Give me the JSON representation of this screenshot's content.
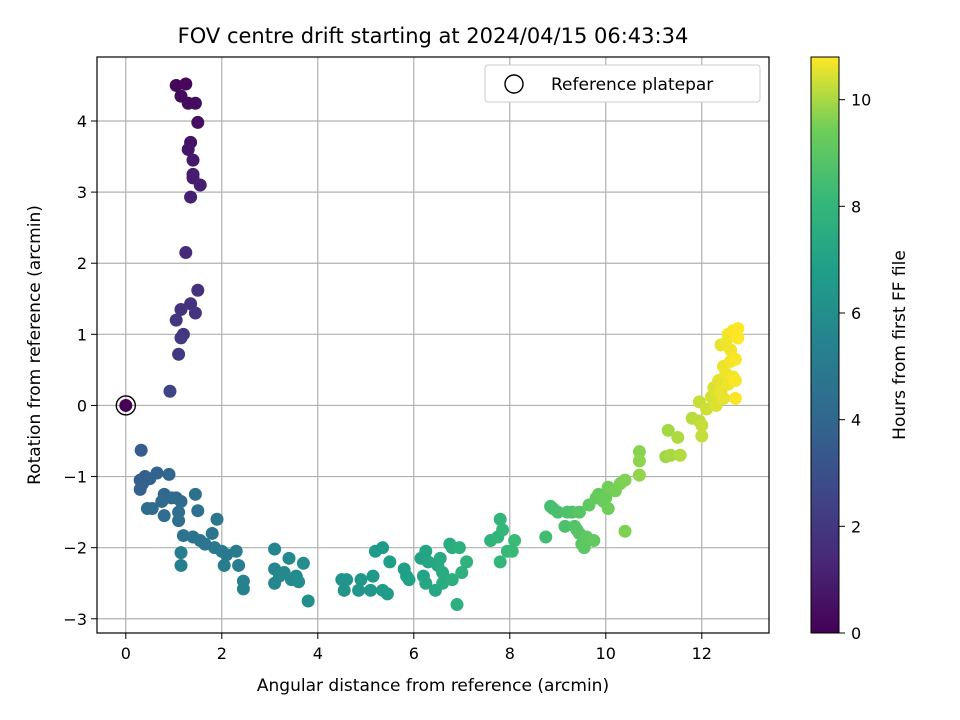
{
  "chart_data": {
    "type": "scatter",
    "title": "FOV centre drift starting at 2024/04/15 06:43:34",
    "xlabel": "Angular distance from reference (arcmin)",
    "ylabel": "Rotation from reference (arcmin)",
    "xlim": [
      -0.6,
      13.4
    ],
    "ylim": [
      -3.2,
      4.9
    ],
    "xticks": [
      0,
      2,
      4,
      6,
      8,
      10,
      12
    ],
    "yticks": [
      -3,
      -2,
      -1,
      0,
      1,
      2,
      3,
      4
    ],
    "grid": true,
    "colormap": "viridis",
    "colorbar": {
      "label": "Hours from first FF file",
      "range": [
        0,
        10.8
      ],
      "ticks": [
        0,
        2,
        4,
        6,
        8,
        10
      ]
    },
    "legend": {
      "position": "upper right",
      "entries": [
        "Reference platepar"
      ]
    },
    "reference_point": {
      "x": 0,
      "y": 0
    },
    "points": [
      [
        1.05,
        4.5,
        0.2
      ],
      [
        1.25,
        4.52,
        0.25
      ],
      [
        1.15,
        4.35,
        0.3
      ],
      [
        1.3,
        4.25,
        0.35
      ],
      [
        1.45,
        4.25,
        0.4
      ],
      [
        1.5,
        3.98,
        0.5
      ],
      [
        1.35,
        3.7,
        0.6
      ],
      [
        1.3,
        3.6,
        0.7
      ],
      [
        1.4,
        3.45,
        0.8
      ],
      [
        1.4,
        3.25,
        0.9
      ],
      [
        1.4,
        3.2,
        1.0
      ],
      [
        1.55,
        3.1,
        1.05
      ],
      [
        1.35,
        2.93,
        1.1
      ],
      [
        1.25,
        2.15,
        1.5
      ],
      [
        1.5,
        1.62,
        1.7
      ],
      [
        1.35,
        1.43,
        1.8
      ],
      [
        1.15,
        1.35,
        1.85
      ],
      [
        1.45,
        1.3,
        1.9
      ],
      [
        1.05,
        1.2,
        1.95
      ],
      [
        1.2,
        1.0,
        2.0
      ],
      [
        1.15,
        0.95,
        2.05
      ],
      [
        1.1,
        0.72,
        2.1
      ],
      [
        0.92,
        0.2,
        2.5
      ],
      [
        0.32,
        -0.63,
        3.5
      ],
      [
        0.3,
        -1.05,
        3.6
      ],
      [
        0.4,
        -1.0,
        3.65
      ],
      [
        0.35,
        -1.1,
        3.7
      ],
      [
        0.3,
        -1.18,
        3.75
      ],
      [
        0.5,
        -1.03,
        3.8
      ],
      [
        0.65,
        -0.95,
        3.9
      ],
      [
        0.9,
        -0.97,
        4.0
      ],
      [
        0.8,
        -1.25,
        4.05
      ],
      [
        0.95,
        -1.3,
        4.1
      ],
      [
        1.05,
        -1.3,
        4.15
      ],
      [
        1.15,
        -1.35,
        4.2
      ],
      [
        0.75,
        -1.35,
        4.2
      ],
      [
        0.55,
        -1.45,
        4.25
      ],
      [
        0.45,
        -1.45,
        4.3
      ],
      [
        0.8,
        -1.55,
        4.35
      ],
      [
        1.1,
        -1.5,
        4.4
      ],
      [
        1.1,
        -1.62,
        4.45
      ],
      [
        1.45,
        -1.25,
        4.5
      ],
      [
        1.5,
        -1.48,
        4.5
      ],
      [
        1.2,
        -1.83,
        4.6
      ],
      [
        1.4,
        -1.85,
        4.65
      ],
      [
        1.55,
        -1.9,
        4.7
      ],
      [
        1.65,
        -1.95,
        4.75
      ],
      [
        1.8,
        -1.8,
        4.8
      ],
      [
        1.9,
        -1.6,
        4.85
      ],
      [
        1.85,
        -2.0,
        4.9
      ],
      [
        2.0,
        -2.05,
        4.95
      ],
      [
        2.1,
        -2.1,
        5.0
      ],
      [
        2.05,
        -2.25,
        5.05
      ],
      [
        2.3,
        -2.05,
        5.1
      ],
      [
        2.35,
        -2.25,
        5.15
      ],
      [
        1.15,
        -2.07,
        5.2
      ],
      [
        1.15,
        -2.25,
        5.25
      ],
      [
        2.45,
        -2.47,
        5.3
      ],
      [
        2.45,
        -2.58,
        5.35
      ],
      [
        3.1,
        -2.02,
        5.5
      ],
      [
        3.1,
        -2.3,
        5.55
      ],
      [
        3.1,
        -2.5,
        5.6
      ],
      [
        3.2,
        -2.4,
        5.65
      ],
      [
        3.3,
        -2.35,
        5.7
      ],
      [
        3.4,
        -2.15,
        5.75
      ],
      [
        3.45,
        -2.45,
        5.8
      ],
      [
        3.55,
        -2.4,
        5.85
      ],
      [
        3.6,
        -2.48,
        5.9
      ],
      [
        3.7,
        -2.22,
        5.95
      ],
      [
        3.8,
        -2.75,
        6.0
      ],
      [
        4.5,
        -2.45,
        6.2
      ],
      [
        4.55,
        -2.6,
        6.25
      ],
      [
        4.6,
        -2.45,
        6.3
      ],
      [
        4.85,
        -2.6,
        6.35
      ],
      [
        4.9,
        -2.45,
        6.4
      ],
      [
        5.1,
        -2.6,
        6.45
      ],
      [
        5.15,
        -2.4,
        6.5
      ],
      [
        5.2,
        -2.05,
        6.55
      ],
      [
        5.35,
        -2.0,
        6.6
      ],
      [
        5.35,
        -2.6,
        6.65
      ],
      [
        5.45,
        -2.65,
        6.7
      ],
      [
        5.5,
        -2.2,
        6.75
      ],
      [
        5.8,
        -2.3,
        6.8
      ],
      [
        5.85,
        -2.4,
        6.85
      ],
      [
        5.9,
        -2.45,
        6.9
      ],
      [
        6.15,
        -2.15,
        7.0
      ],
      [
        6.2,
        -2.4,
        7.05
      ],
      [
        6.25,
        -2.05,
        7.1
      ],
      [
        6.3,
        -2.2,
        7.15
      ],
      [
        6.25,
        -2.5,
        7.2
      ],
      [
        6.45,
        -2.6,
        7.25
      ],
      [
        6.5,
        -2.25,
        7.3
      ],
      [
        6.55,
        -2.15,
        7.35
      ],
      [
        6.6,
        -2.35,
        7.4
      ],
      [
        6.6,
        -2.5,
        7.45
      ],
      [
        6.75,
        -1.95,
        7.5
      ],
      [
        6.8,
        -2.0,
        7.55
      ],
      [
        6.8,
        -2.45,
        7.6
      ],
      [
        6.9,
        -2.8,
        7.65
      ],
      [
        6.95,
        -2.0,
        7.7
      ],
      [
        7.0,
        -2.35,
        7.75
      ],
      [
        7.1,
        -2.2,
        7.8
      ],
      [
        7.6,
        -1.9,
        7.9
      ],
      [
        7.75,
        -1.85,
        7.95
      ],
      [
        7.8,
        -1.6,
        8.0
      ],
      [
        7.8,
        -2.2,
        8.05
      ],
      [
        7.85,
        -1.75,
        8.1
      ],
      [
        7.95,
        -2.05,
        8.15
      ],
      [
        8.05,
        -2.05,
        8.2
      ],
      [
        8.1,
        -1.9,
        8.25
      ],
      [
        8.75,
        -1.85,
        8.4
      ],
      [
        8.85,
        -1.42,
        8.5
      ],
      [
        8.9,
        -1.45,
        8.55
      ],
      [
        9.0,
        -1.5,
        8.6
      ],
      [
        9.15,
        -1.7,
        8.65
      ],
      [
        9.2,
        -1.5,
        8.7
      ],
      [
        9.3,
        -1.5,
        8.75
      ],
      [
        9.35,
        -1.7,
        8.8
      ],
      [
        9.4,
        -1.75,
        8.85
      ],
      [
        9.45,
        -1.8,
        8.9
      ],
      [
        9.45,
        -1.5,
        8.95
      ],
      [
        9.5,
        -1.95,
        9.0
      ],
      [
        9.55,
        -2.0,
        9.05
      ],
      [
        9.6,
        -1.85,
        9.1
      ],
      [
        9.65,
        -1.4,
        9.1
      ],
      [
        9.75,
        -1.9,
        9.15
      ],
      [
        9.8,
        -1.3,
        9.2
      ],
      [
        9.85,
        -1.25,
        9.25
      ],
      [
        9.95,
        -1.35,
        9.3
      ],
      [
        10.0,
        -1.3,
        9.35
      ],
      [
        10.05,
        -1.45,
        9.4
      ],
      [
        10.05,
        -1.15,
        9.45
      ],
      [
        10.2,
        -1.2,
        9.5
      ],
      [
        10.3,
        -1.1,
        9.55
      ],
      [
        10.4,
        -1.05,
        9.6
      ],
      [
        10.4,
        -1.77,
        9.6
      ],
      [
        10.7,
        -0.65,
        9.7
      ],
      [
        10.7,
        -0.78,
        9.75
      ],
      [
        10.7,
        -0.98,
        9.8
      ],
      [
        11.25,
        -0.72,
        9.9
      ],
      [
        11.3,
        -0.35,
        9.95
      ],
      [
        11.35,
        -0.7,
        10.0
      ],
      [
        11.5,
        -0.45,
        10.05
      ],
      [
        11.55,
        -0.7,
        10.1
      ],
      [
        11.8,
        -0.18,
        10.15
      ],
      [
        11.95,
        -0.22,
        10.2
      ],
      [
        12.0,
        -0.43,
        10.25
      ],
      [
        12.0,
        -0.28,
        10.3
      ],
      [
        11.95,
        0.05,
        10.3
      ],
      [
        12.1,
        -0.05,
        10.35
      ],
      [
        12.2,
        0.12,
        10.4
      ],
      [
        12.25,
        0.25,
        10.45
      ],
      [
        12.3,
        0.0,
        10.5
      ],
      [
        12.3,
        0.18,
        10.5
      ],
      [
        12.35,
        0.35,
        10.55
      ],
      [
        12.4,
        0.3,
        10.55
      ],
      [
        12.4,
        0.2,
        10.6
      ],
      [
        12.45,
        0.1,
        10.6
      ],
      [
        12.4,
        0.85,
        10.6
      ],
      [
        12.45,
        0.55,
        10.62
      ],
      [
        12.5,
        0.45,
        10.65
      ],
      [
        12.5,
        0.88,
        10.65
      ],
      [
        12.55,
        0.3,
        10.66
      ],
      [
        12.55,
        1.0,
        10.68
      ],
      [
        12.6,
        0.78,
        10.7
      ],
      [
        12.6,
        0.62,
        10.7
      ],
      [
        12.65,
        0.4,
        10.72
      ],
      [
        12.65,
        1.05,
        10.74
      ],
      [
        12.7,
        0.65,
        10.75
      ],
      [
        12.7,
        0.35,
        10.76
      ],
      [
        12.7,
        0.1,
        10.77
      ],
      [
        12.75,
        1.08,
        10.8
      ],
      [
        12.75,
        0.95,
        10.8
      ]
    ]
  }
}
